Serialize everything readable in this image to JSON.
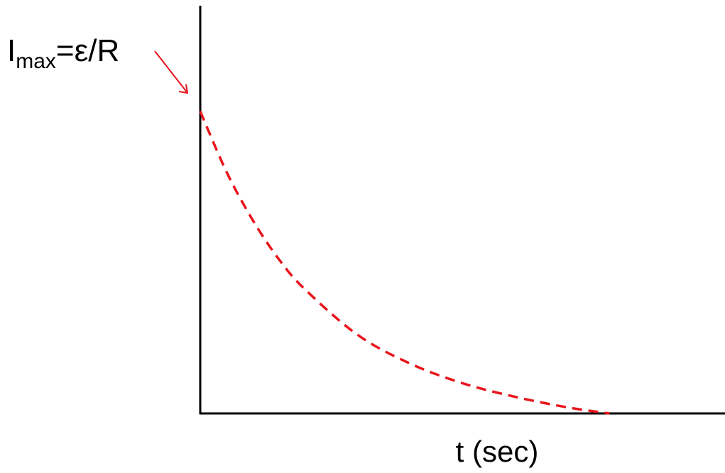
{
  "chart_data": {
    "type": "line",
    "title": "",
    "xlabel": "t (sec)",
    "ylabel": "",
    "annotation": {
      "main": "I",
      "subscript": "max",
      "rest": "=ε/R"
    },
    "series": [
      {
        "style": "dashed",
        "color": "#e8141c",
        "description_points": {
          "x": [
            0,
            0.05,
            0.1,
            0.15,
            0.2,
            0.3,
            0.4,
            0.5,
            0.6,
            0.7,
            0.78
          ],
          "y": [
            1.0,
            0.8,
            0.64,
            0.51,
            0.41,
            0.26,
            0.165,
            0.1,
            0.055,
            0.02,
            0.0
          ]
        }
      }
    ],
    "xlim": [
      0,
      1.0
    ],
    "ylim": [
      0,
      1.0
    ],
    "grid": false,
    "legend": "none"
  },
  "colors": {
    "axis": "#000000",
    "curve": "#e8141c",
    "arrow": "#e8141c"
  }
}
